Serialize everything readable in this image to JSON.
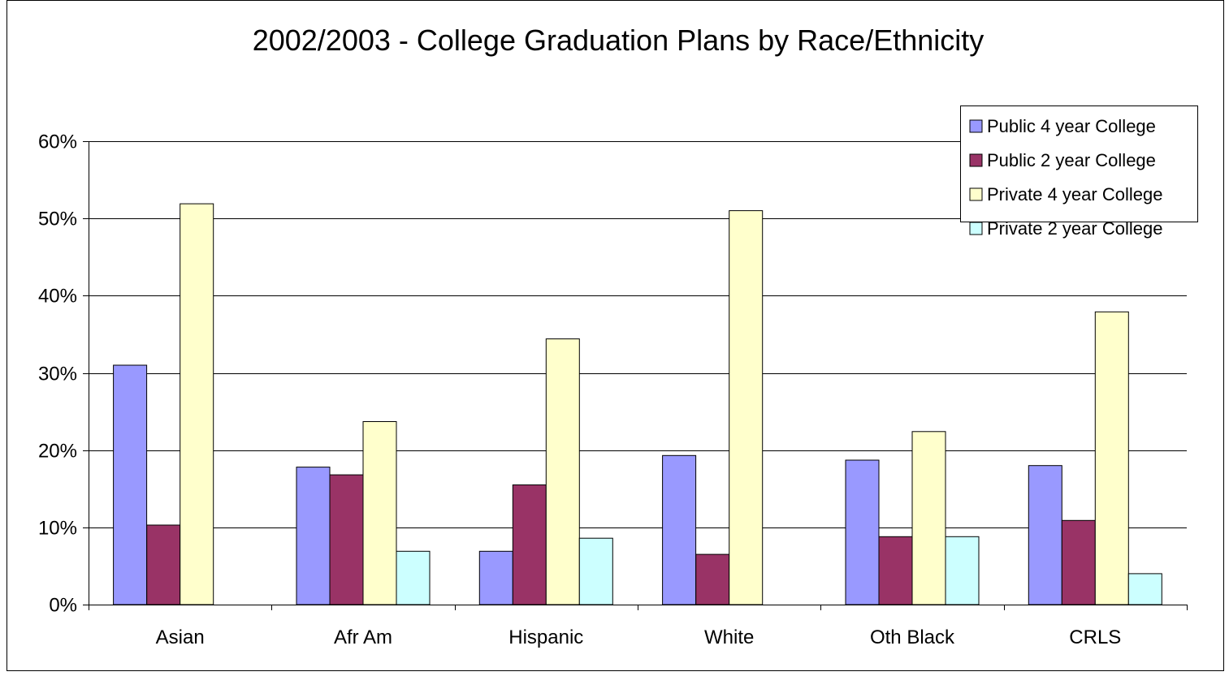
{
  "chart_data": {
    "type": "bar",
    "title": "2002/2003 - College Graduation Plans by Race/Ethnicity",
    "xlabel": "",
    "ylabel": "",
    "ylim": [
      0,
      0.6
    ],
    "yticks": [
      0,
      0.1,
      0.2,
      0.3,
      0.4,
      0.5,
      0.6
    ],
    "ytick_labels": [
      "0%",
      "10%",
      "20%",
      "30%",
      "40%",
      "50%",
      "60%"
    ],
    "grid": true,
    "legend_position": "top-right",
    "categories": [
      "Asian",
      "Afr Am",
      "Hispanic",
      "White",
      "Oth Black",
      "CRLS"
    ],
    "series": [
      {
        "name": "Public 4 year College",
        "color": "#9999ff",
        "values": [
          0.31,
          0.178,
          0.069,
          0.193,
          0.187,
          0.18
        ]
      },
      {
        "name": "Public 2 year College",
        "color": "#993366",
        "values": [
          0.103,
          0.168,
          0.155,
          0.065,
          0.088,
          0.109
        ]
      },
      {
        "name": "Private 4 year College",
        "color": "#ffffcc",
        "values": [
          0.519,
          0.237,
          0.344,
          0.51,
          0.224,
          0.379
        ]
      },
      {
        "name": "Private 2 year College",
        "color": "#ccffff",
        "values": [
          0,
          0.069,
          0.086,
          0,
          0.088,
          0.04
        ]
      }
    ]
  }
}
